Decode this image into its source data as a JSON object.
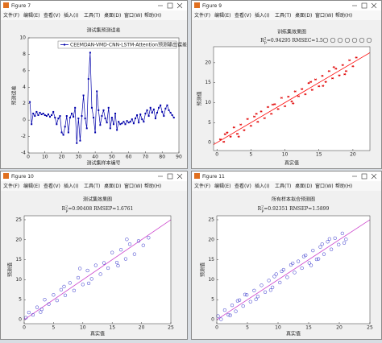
{
  "menu": [
    "文件(F)",
    "编辑(E)",
    "查看(V)",
    "插入(I)",
    "工具(T)",
    "桌面(D)",
    "窗口(W)",
    "帮助(H)"
  ],
  "windows": [
    {
      "title": "Figure 7",
      "chart_data": {
        "type": "line",
        "title": "测试集预测误差",
        "xlabel": "测试集样本编号",
        "ylabel": "预测误差",
        "x": [
          1,
          2,
          3,
          4,
          5,
          6,
          7,
          8,
          9,
          10,
          11,
          12,
          13,
          14,
          15,
          16,
          17,
          18,
          19,
          20,
          21,
          22,
          23,
          24,
          25,
          26,
          27,
          28,
          29,
          30,
          31,
          32,
          33,
          34,
          35,
          36,
          37,
          38,
          39,
          40,
          41,
          42,
          43,
          44,
          45,
          46,
          47,
          48,
          49,
          50,
          51,
          52,
          53,
          54,
          55,
          56,
          57,
          58,
          59,
          60,
          61,
          62,
          63,
          64,
          65,
          66,
          67,
          68,
          69,
          70,
          71,
          72,
          73,
          74,
          75,
          76,
          77,
          78,
          79,
          80,
          81,
          82,
          83,
          84,
          85,
          86,
          87
        ],
        "series": [
          {
            "name": "CEEMDAN-VMD-CNN-LSTM-Attention预测输出误差",
            "color": "#0000aa",
            "values": [
              2.2,
              -0.5,
              0.8,
              0.5,
              1.0,
              0.6,
              0.9,
              0.7,
              0.8,
              0.6,
              0.5,
              0.7,
              0.4,
              0.6,
              1.0,
              0.3,
              -0.5,
              0.2,
              0.5,
              -1.5,
              -1.8,
              -0.8,
              0.5,
              -1.5,
              0.3,
              0.8,
              0.4,
              1.5,
              -2.8,
              0.2,
              -2.5,
              0.5,
              3.0,
              0.2,
              -1.0,
              5.0,
              8.2,
              1.5,
              0.3,
              -1.5,
              3.5,
              1.2,
              -0.6,
              0.5,
              1.2,
              0.2,
              -0.3,
              1.5,
              -1.0,
              0.3,
              -0.5,
              0.8,
              -1.2,
              -0.2,
              -0.5,
              -0.4,
              -0.2,
              -0.5,
              -0.1,
              -0.3,
              -0.2,
              0.1,
              -0.4,
              0.2,
              0.6,
              -0.3,
              0.7,
              0.1,
              -0.2,
              0.8,
              1.2,
              0.5,
              1.5,
              0.9,
              1.3,
              0.2,
              0.9,
              1.5,
              1.8,
              1.0,
              0.5,
              1.4,
              1.8,
              1.2,
              0.9,
              0.6,
              0.3
            ]
          }
        ],
        "xlim": [
          0,
          90
        ],
        "xticks": [
          0,
          10,
          20,
          30,
          40,
          50,
          60,
          70,
          80,
          90
        ],
        "ylim": [
          -4,
          10
        ],
        "yticks": [
          -4,
          -2,
          0,
          2,
          4,
          6,
          8,
          10
        ],
        "legend": "top-right"
      }
    },
    {
      "title": "Figure 9",
      "chart_data": {
        "type": "scatter",
        "title": "训练集效果图",
        "annotation": {
          "base": "R",
          "sup": "2",
          "sub": "p",
          "text": "=0.94295  RMSEC=1.5"
        },
        "xlabel": "真实值",
        "ylabel": "预测值",
        "marker": "star",
        "color": "#e00000",
        "line_color": "#ff0000",
        "x": [
          0.5,
          1,
          1.5,
          2,
          2.5,
          3,
          3.5,
          4,
          4.5,
          5,
          5.5,
          6,
          6.5,
          7,
          7.5,
          8,
          8.5,
          9,
          9.5,
          10,
          10.5,
          11,
          11.5,
          12,
          12.5,
          13,
          13.5,
          14,
          14.5,
          15,
          15.5,
          16,
          16.5,
          17,
          17.5,
          18,
          18.5,
          19,
          19.5,
          20,
          1.2,
          3.2,
          5.8,
          8.2,
          11.2,
          13.8,
          15.6,
          17.2,
          18.8,
          20.5
        ],
        "values": [
          0.8,
          0.2,
          2.5,
          1.5,
          3.8,
          2.2,
          4.5,
          3.1,
          5.9,
          4.2,
          6.5,
          5.2,
          7.8,
          6.1,
          8.9,
          7.2,
          9.6,
          8.4,
          11.2,
          9.1,
          11.5,
          10.3,
          12.8,
          11.6,
          13.4,
          12.1,
          14.9,
          13.2,
          15.8,
          14.1,
          16.7,
          15.2,
          17.9,
          16.1,
          18.5,
          16.8,
          19.4,
          17.9,
          20.6,
          19.1,
          2.1,
          1.5,
          7.2,
          9.5,
          9.8,
          15.2,
          14.2,
          18.9,
          17.1,
          21.3
        ],
        "xlim": [
          -0.5,
          22.5
        ],
        "xticks": [
          0,
          5,
          10,
          15,
          20
        ],
        "ylim": [
          -2,
          24
        ],
        "yticks": [
          0,
          5,
          10,
          15,
          20
        ]
      }
    },
    {
      "title": "Figure 10",
      "chart_data": {
        "type": "scatter",
        "title": "测试集效果图",
        "annotation": {
          "base": "R",
          "sup": "2",
          "sub": "p",
          "text": "=0.90408  RMSEP=1.6761"
        },
        "xlabel": "真实值",
        "ylabel": "预测值",
        "marker": "circle",
        "color": "#3333cc",
        "line_color": "#cc44cc",
        "x": [
          0.3,
          0.8,
          1.5,
          2.2,
          3,
          3.5,
          4.2,
          5,
          5.6,
          6.3,
          7,
          7.8,
          8.5,
          9.2,
          10,
          10.8,
          11.5,
          12.2,
          13,
          13.6,
          14.3,
          15,
          15.8,
          16.5,
          17.3,
          18,
          18.8,
          19.5,
          20.3,
          21.2,
          2.8,
          6.8,
          9.5,
          11,
          16,
          17.5
        ],
        "values": [
          0.5,
          1.8,
          1.2,
          3.1,
          2.6,
          5,
          3.9,
          6.2,
          4.8,
          7.5,
          6.1,
          9.2,
          7.3,
          10.5,
          8.8,
          12.3,
          10.2,
          13.6,
          11.4,
          14.2,
          12.9,
          16.8,
          14.3,
          17.5,
          15.2,
          18.9,
          16.4,
          19.7,
          18.6,
          20.5,
          1.9,
          8.3,
          12.8,
          9.1,
          13.5,
          20.1
        ],
        "xlim": [
          0,
          25
        ],
        "xticks": [
          0,
          5,
          10,
          15,
          20,
          25
        ],
        "ylim": [
          -1,
          26
        ],
        "yticks": [
          0,
          5,
          10,
          15,
          20,
          25
        ]
      }
    },
    {
      "title": "Figure 11",
      "chart_data": {
        "type": "scatter",
        "title": "所有样本拟合预测图",
        "annotation": {
          "base": "R",
          "sup": "2",
          "sub": "p",
          "text": "=0.92351  RMSEP=1.5899"
        },
        "xlabel": "真实值",
        "ylabel": "预测值",
        "marker": "circle",
        "color": "#3333cc",
        "line_color": "#cc44cc",
        "x": [
          0.2,
          0.7,
          1.3,
          1.9,
          2.5,
          3.1,
          3.7,
          4.3,
          4.9,
          5.5,
          6.1,
          6.7,
          7.3,
          7.9,
          8.5,
          9.1,
          9.7,
          10.3,
          10.9,
          11.5,
          12.1,
          12.7,
          13.3,
          13.9,
          14.5,
          15.1,
          15.7,
          16.3,
          16.9,
          17.5,
          18.1,
          18.7,
          19.3,
          19.9,
          20.5,
          21.1,
          2.2,
          4.6,
          8.8,
          12.4,
          15.4,
          18.4,
          6.4,
          10.6,
          14.2,
          17.2,
          20.8,
          3.4,
          9.4,
          16.6
        ],
        "values": [
          0.9,
          0.1,
          2.4,
          1.2,
          3.6,
          2.1,
          4.9,
          3.4,
          6.2,
          4.5,
          7.3,
          5.8,
          8.6,
          6.9,
          9.8,
          8.1,
          11.4,
          9.3,
          12.5,
          10.6,
          13.7,
          11.8,
          14.6,
          12.9,
          16.1,
          14.2,
          17.3,
          15.1,
          18.2,
          16.4,
          19.5,
          17.6,
          20.4,
          18.8,
          21.6,
          20.1,
          1.1,
          6.3,
          7.4,
          14.1,
          13.6,
          20.2,
          5.1,
          12.1,
          15.8,
          18.9,
          19.2,
          4.7,
          10.8,
          15.2
        ],
        "xlim": [
          0,
          25
        ],
        "xticks": [
          0,
          5,
          10,
          15,
          20,
          25
        ],
        "ylim": [
          -1,
          26
        ],
        "yticks": [
          0,
          5,
          10,
          15,
          20,
          25
        ]
      }
    }
  ]
}
